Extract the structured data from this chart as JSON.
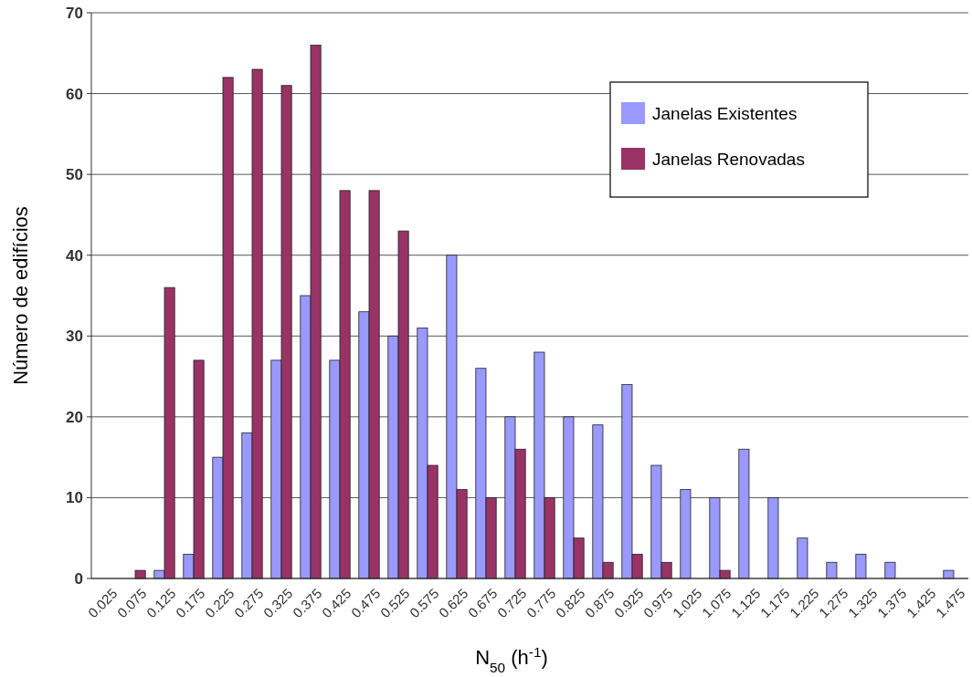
{
  "chart_data": {
    "type": "bar",
    "xlabel": "N$_{50}$ (h$^{-1}$)",
    "ylabel": "Número de edifícios",
    "categories": [
      "0.025",
      "0.075",
      "0.125",
      "0.175",
      "0.225",
      "0.275",
      "0.325",
      "0.375",
      "0.425",
      "0.475",
      "0.525",
      "0.575",
      "0.625",
      "0.675",
      "0.725",
      "0.775",
      "0.825",
      "0.875",
      "0.925",
      "0.975",
      "1.025",
      "1.075",
      "1.125",
      "1.175",
      "1.225",
      "1.275",
      "1.325",
      "1.375",
      "1.425",
      "1.475"
    ],
    "series": [
      {
        "name": "Janelas Existentes",
        "color": "#9999ff",
        "values": [
          0,
          0,
          1,
          3,
          15,
          18,
          27,
          35,
          27,
          33,
          30,
          31,
          40,
          26,
          20,
          28,
          20,
          19,
          24,
          14,
          11,
          10,
          16,
          10,
          5,
          2,
          3,
          2,
          0,
          1
        ]
      },
      {
        "name": "Janelas Renovadas",
        "color": "#993366",
        "values": [
          0,
          1,
          36,
          27,
          62,
          63,
          61,
          66,
          48,
          48,
          43,
          14,
          11,
          10,
          16,
          10,
          5,
          2,
          3,
          2,
          0,
          1,
          0,
          0,
          0,
          0,
          0,
          0,
          0,
          0
        ]
      }
    ],
    "ylim": [
      0,
      70
    ],
    "yticks": [
      0,
      10,
      20,
      30,
      40,
      50,
      60,
      70
    ],
    "grid": "y",
    "legend": "top right"
  }
}
